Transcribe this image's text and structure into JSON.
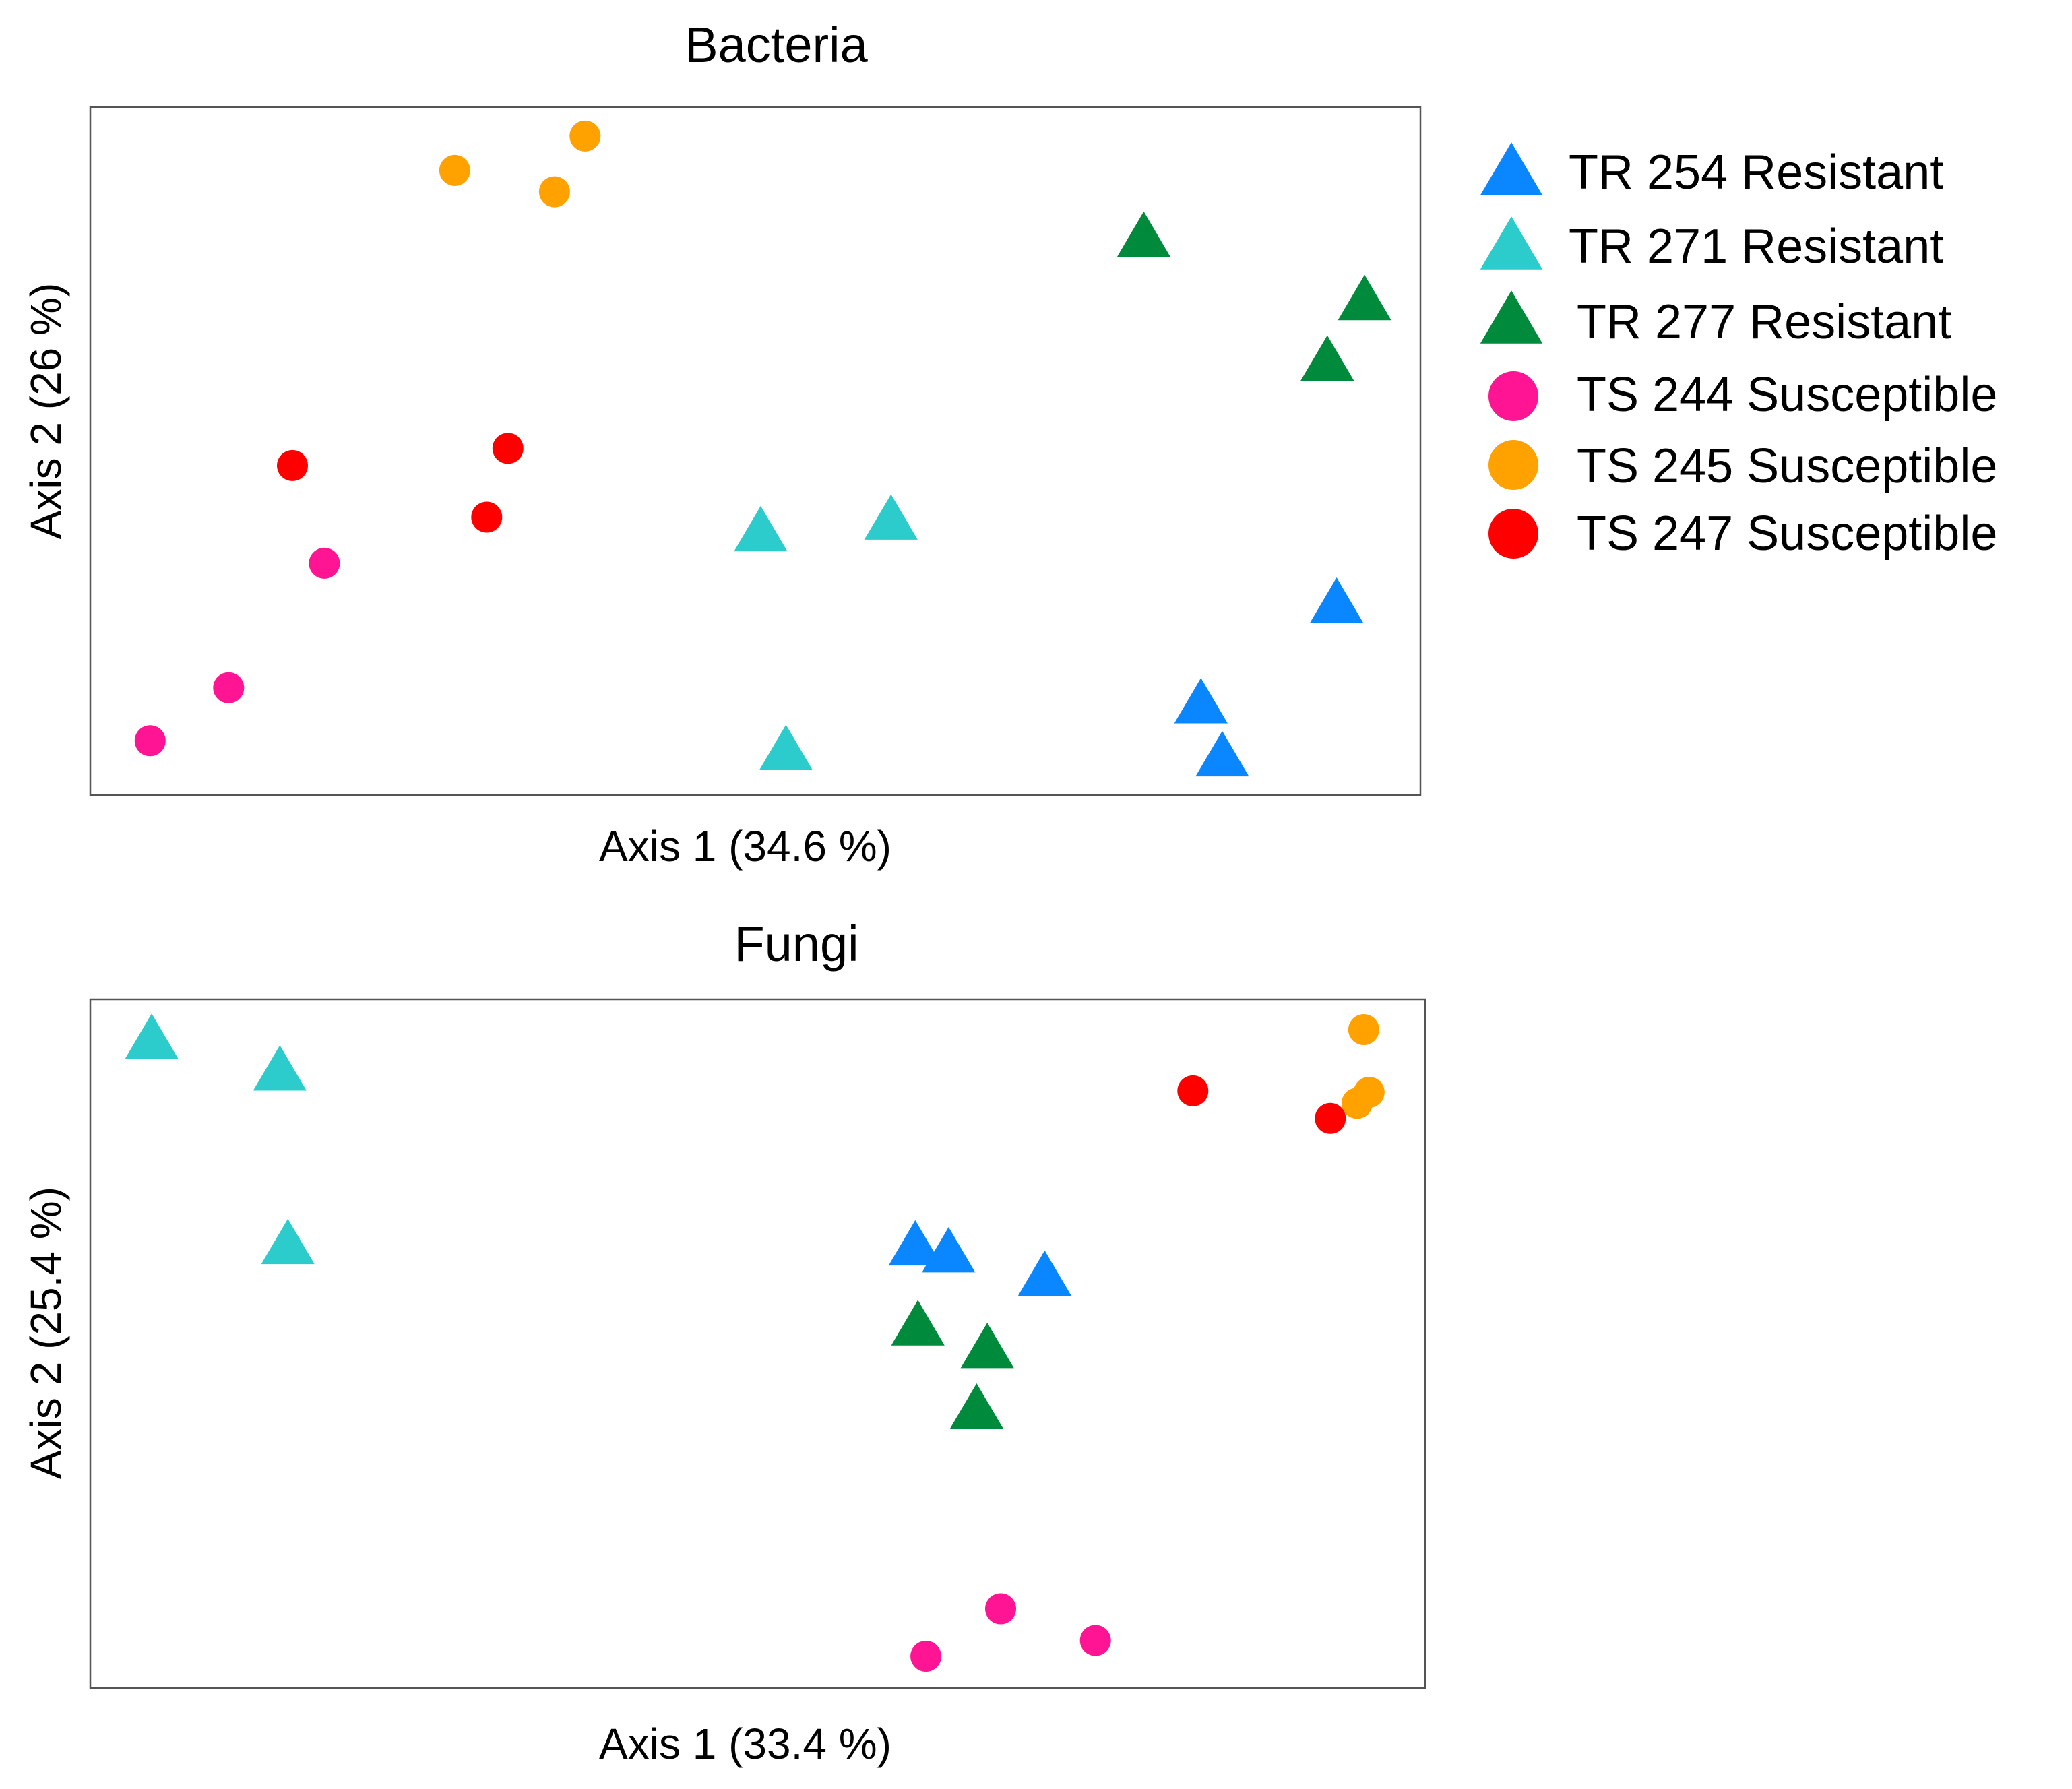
{
  "series_styles": [
    {
      "name": "TR 254 Resistant",
      "shape": "triangle",
      "color": "#0a86ff"
    },
    {
      "name": "TR 271 Resistant",
      "shape": "triangle",
      "color": "#2dcccc"
    },
    {
      "name": "TR 277 Resistant",
      "shape": "triangle",
      "color": "#008a3c"
    },
    {
      "name": "TS 244 Susceptible",
      "shape": "circle",
      "color": "#ff1493"
    },
    {
      "name": "TS 245 Susceptible",
      "shape": "circle",
      "color": "#ffa200"
    },
    {
      "name": "TS 247 Susceptible",
      "shape": "circle",
      "color": "#ff0000"
    }
  ],
  "chart_data": [
    {
      "type": "scatter",
      "title": "Bacteria",
      "xlabel": "Axis 1 (34.6 %)",
      "ylabel": "Axis 2 (26 %)",
      "xlim": [
        0,
        100
      ],
      "ylim": [
        0,
        100
      ],
      "grid": false,
      "legend": "right",
      "series": [
        {
          "name": "TR 254 Resistant",
          "points": [
            [
              93.7,
              27.7
            ],
            [
              83.5,
              13.1
            ],
            [
              85.1,
              5.4
            ]
          ]
        },
        {
          "name": "TR 271 Resistant",
          "points": [
            [
              50.4,
              38.1
            ],
            [
              60.2,
              39.8
            ],
            [
              52.3,
              6.3
            ]
          ]
        },
        {
          "name": "TR 277 Resistant",
          "points": [
            [
              79.2,
              80.9
            ],
            [
              95.8,
              71.7
            ],
            [
              93.0,
              62.9
            ]
          ]
        },
        {
          "name": "TS 244 Susceptible",
          "points": [
            [
              17.6,
              33.7
            ],
            [
              10.4,
              15.6
            ],
            [
              4.5,
              7.9
            ]
          ]
        },
        {
          "name": "TS 245 Susceptible",
          "points": [
            [
              27.4,
              90.8
            ],
            [
              37.2,
              95.8
            ],
            [
              34.9,
              87.7
            ]
          ]
        },
        {
          "name": "TS 247 Susceptible",
          "points": [
            [
              15.2,
              47.9
            ],
            [
              31.4,
              50.4
            ],
            [
              29.8,
              40.4
            ]
          ]
        }
      ]
    },
    {
      "type": "scatter",
      "title": "Fungi",
      "xlabel": "Axis 1 (33.4 %)",
      "ylabel": "Axis 2 (25.4 %)",
      "xlim": [
        0,
        100
      ],
      "ylim": [
        0,
        100
      ],
      "grid": false,
      "series": [
        {
          "name": "TR 254 Resistant",
          "points": [
            [
              61.8,
              64.0
            ],
            [
              64.3,
              63.0
            ],
            [
              71.5,
              59.6
            ]
          ]
        },
        {
          "name": "TR 271 Resistant",
          "points": [
            [
              4.6,
              94.0
            ],
            [
              14.2,
              89.4
            ],
            [
              14.8,
              64.2
            ]
          ]
        },
        {
          "name": "TR 277 Resistant",
          "points": [
            [
              62.0,
              52.4
            ],
            [
              67.2,
              49.1
            ],
            [
              66.4,
              40.3
            ]
          ]
        },
        {
          "name": "TS 244 Susceptible",
          "points": [
            [
              68.2,
              11.5
            ],
            [
              75.3,
              6.9
            ],
            [
              62.6,
              4.6
            ]
          ]
        },
        {
          "name": "TS 245 Susceptible",
          "points": [
            [
              95.4,
              95.6
            ],
            [
              95.8,
              86.5
            ],
            [
              94.9,
              84.9
            ]
          ]
        },
        {
          "name": "TS 247 Susceptible",
          "points": [
            [
              82.6,
              86.7
            ],
            [
              92.9,
              82.7
            ]
          ]
        }
      ]
    }
  ]
}
